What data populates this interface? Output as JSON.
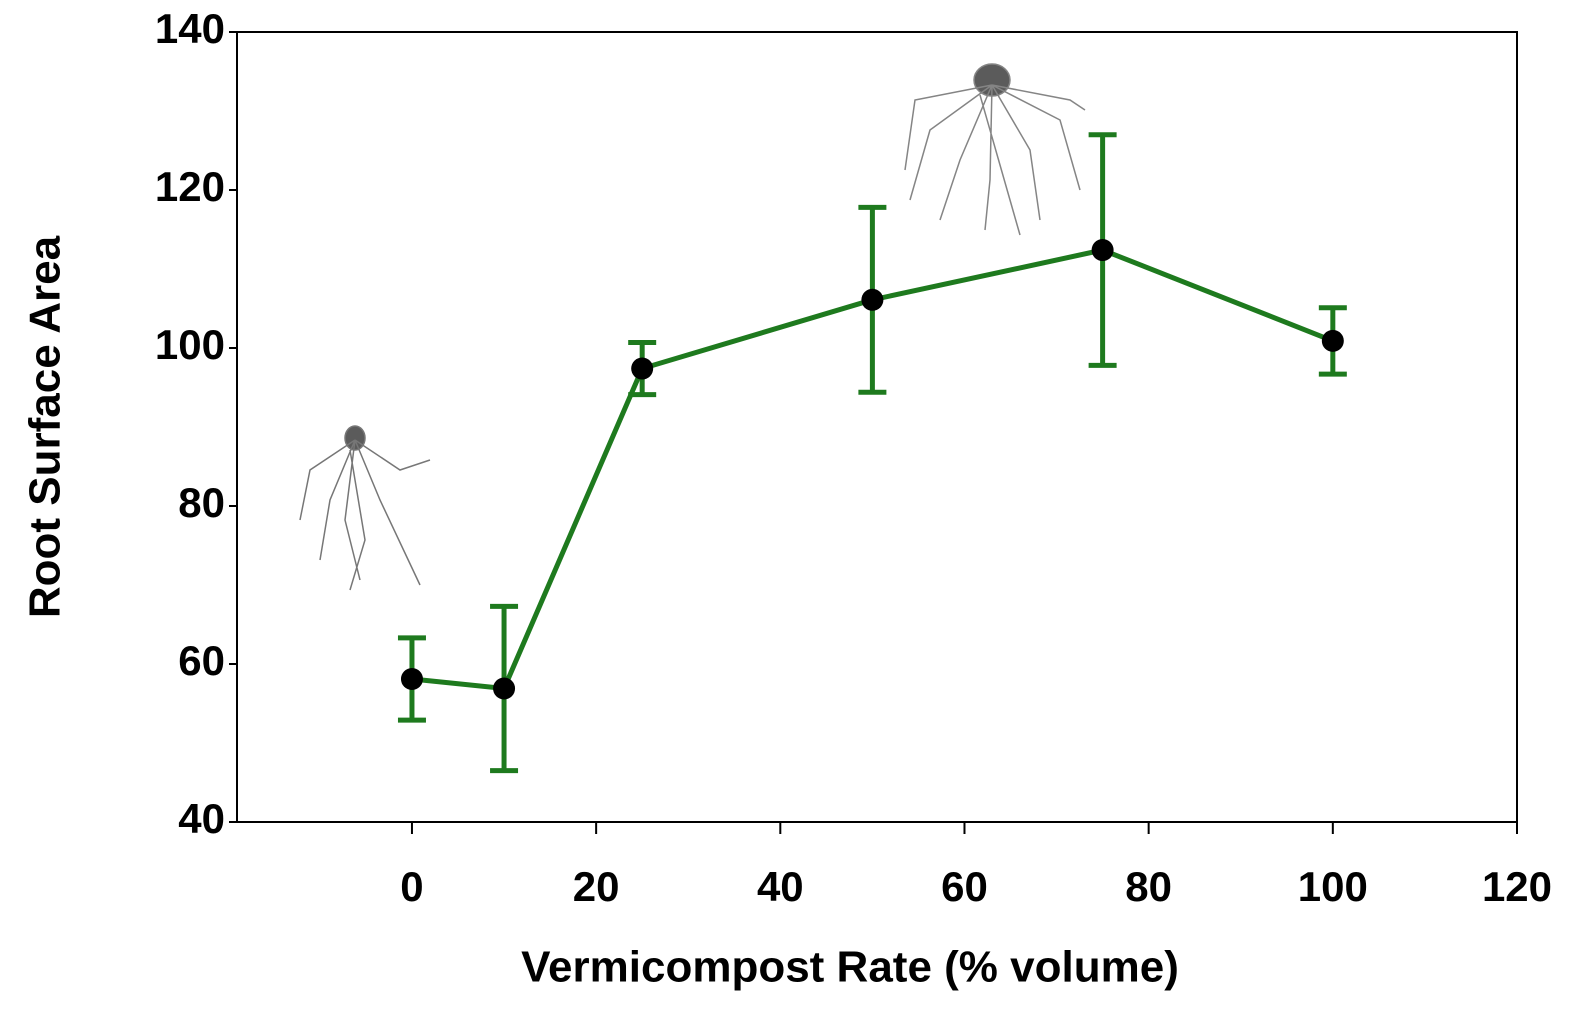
{
  "chart_data": {
    "type": "line",
    "x_label": "Vermicompost Rate (% volume)",
    "y_label": "Root Surface Area",
    "x": [
      0,
      10,
      25,
      50,
      75,
      100
    ],
    "values": [
      58.1,
      56.9,
      97.4,
      106.1,
      112.4,
      100.9
    ],
    "errors": [
      5.2,
      10.4,
      3.3,
      11.7,
      14.6,
      4.2
    ],
    "color": "#1e7a1e",
    "marker_color": "#000000",
    "xlim": [
      -19,
      120
    ],
    "xticks": [
      0,
      20,
      40,
      60,
      80,
      100,
      120
    ],
    "ylim": [
      40,
      140
    ],
    "yticks": [
      40,
      60,
      80,
      100,
      120,
      140
    ],
    "grid": false
  }
}
